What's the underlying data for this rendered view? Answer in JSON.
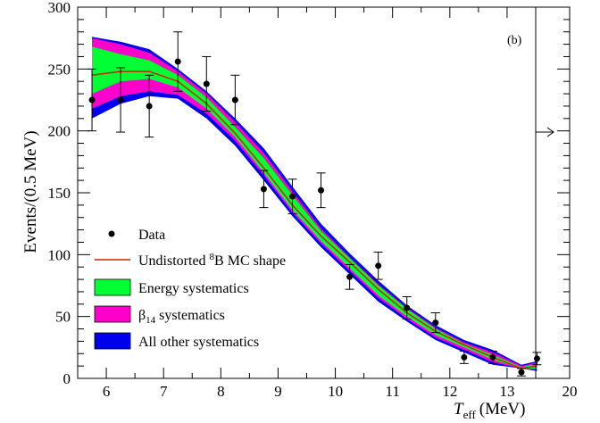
{
  "chart_data": {
    "type": "line",
    "panel_label": "(b)",
    "xlabel": {
      "main": "T",
      "sub": "eff",
      "unit": "(MeV)"
    },
    "ylabel": "Events/(0.5 MeV)",
    "xlim": [
      5.5,
      20
    ],
    "ylim": [
      0,
      300
    ],
    "x_range_note": "axis extends to 20 MeV; last bin beyond 13.5 MeV shown as overflow arrow",
    "xticks": [
      6,
      7,
      8,
      9,
      10,
      11,
      12,
      13,
      20
    ],
    "yticks": [
      0,
      50,
      100,
      150,
      200,
      250,
      300
    ],
    "grid": false,
    "legend_position": "bottom-left",
    "legend": {
      "data": "Data",
      "mc_prefix": "Undistorted ",
      "mc_sup": "8",
      "mc_suffix": "B MC shape",
      "energy": "Energy systematics",
      "beta_main": "β",
      "beta_sub": "14",
      "beta_suffix": " systematics",
      "other": "All other systematics"
    },
    "colors": {
      "mc_line": "#cc2200",
      "energy_band": "#00ff33",
      "beta_band": "#ff00cc",
      "other_band": "#0000ee",
      "data": "#000000"
    },
    "x": [
      5.75,
      6.25,
      6.75,
      7.25,
      7.75,
      8.25,
      8.75,
      9.25,
      9.75,
      10.25,
      10.75,
      11.25,
      11.75,
      12.25,
      12.75,
      13.25,
      13.75
    ],
    "series": [
      {
        "name": "Data",
        "kind": "points",
        "values": [
          225,
          225,
          220,
          256,
          238,
          225,
          153,
          147,
          152,
          82,
          91,
          57,
          45,
          17,
          17,
          5,
          16
        ],
        "errors": [
          25,
          26,
          25,
          24,
          22,
          20,
          15,
          14,
          14,
          10,
          11,
          9,
          8,
          5,
          5,
          3,
          5
        ]
      },
      {
        "name": "Undistorted 8B MC shape",
        "kind": "line",
        "values": [
          245,
          248,
          248,
          240,
          222,
          198,
          170,
          140,
          115,
          94,
          72,
          53,
          38,
          27,
          17,
          8,
          10
        ]
      },
      {
        "name": "All other systematics",
        "kind": "band",
        "lower": [
          210,
          222,
          228,
          226,
          210,
          188,
          160,
          131,
          106,
          84,
          62,
          46,
          31,
          21,
          11,
          8,
          6
        ],
        "upper": [
          276,
          272,
          266,
          250,
          232,
          210,
          186,
          155,
          125,
          101,
          79,
          59,
          43,
          31,
          23,
          11,
          14
        ]
      },
      {
        "name": "β14 systematics",
        "kind": "band",
        "lower": [
          218,
          228,
          232,
          229,
          214,
          192,
          164,
          134,
          109,
          87,
          65,
          48,
          33,
          23,
          13,
          8,
          7
        ],
        "upper": [
          275,
          270,
          263,
          248,
          230,
          207,
          182,
          151,
          121,
          98,
          76,
          57,
          41,
          29,
          21,
          10,
          13
        ]
      },
      {
        "name": "Energy systematics",
        "kind": "band",
        "lower": [
          230,
          240,
          242,
          235,
          218,
          195,
          166,
          136,
          111,
          89,
          67,
          50,
          35,
          25,
          15,
          8,
          8
        ],
        "upper": [
          268,
          262,
          257,
          245,
          227,
          203,
          178,
          148,
          119,
          97,
          75,
          56,
          40,
          28,
          19,
          9,
          12
        ]
      }
    ]
  }
}
